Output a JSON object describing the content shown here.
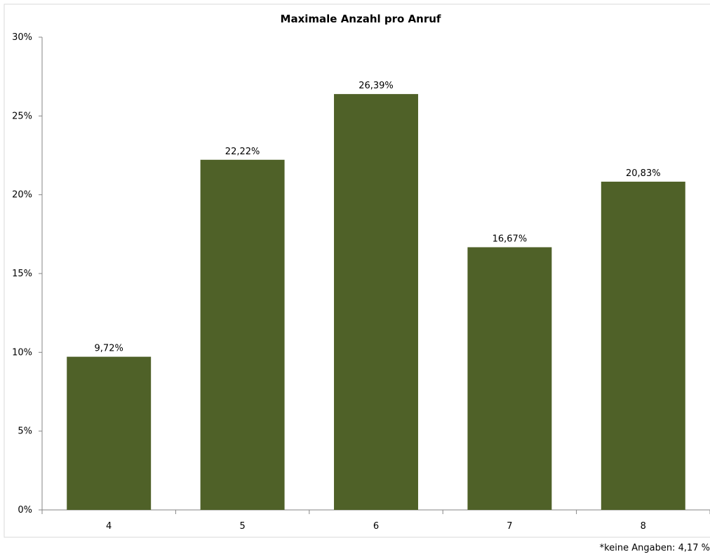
{
  "chart_data": {
    "type": "bar",
    "title": "Maximale Anzahl pro Anruf",
    "categories": [
      "4",
      "5",
      "6",
      "7",
      "8"
    ],
    "values": [
      9.72,
      22.22,
      26.39,
      16.67,
      20.83
    ],
    "data_labels": [
      "9,72%",
      "22,22%",
      "26,39%",
      "16,67%",
      "20,83%"
    ],
    "ylim": [
      0,
      30
    ],
    "yticks": [
      0,
      5,
      10,
      15,
      20,
      25,
      30
    ],
    "ytick_labels": [
      "0%",
      "5%",
      "10%",
      "15%",
      "20%",
      "25%",
      "30%"
    ],
    "xlabel": "",
    "ylabel": "",
    "grid": false,
    "legend": "none",
    "bar_color": "#4f6128",
    "footnote": "*keine Angaben: 4,17 %"
  }
}
